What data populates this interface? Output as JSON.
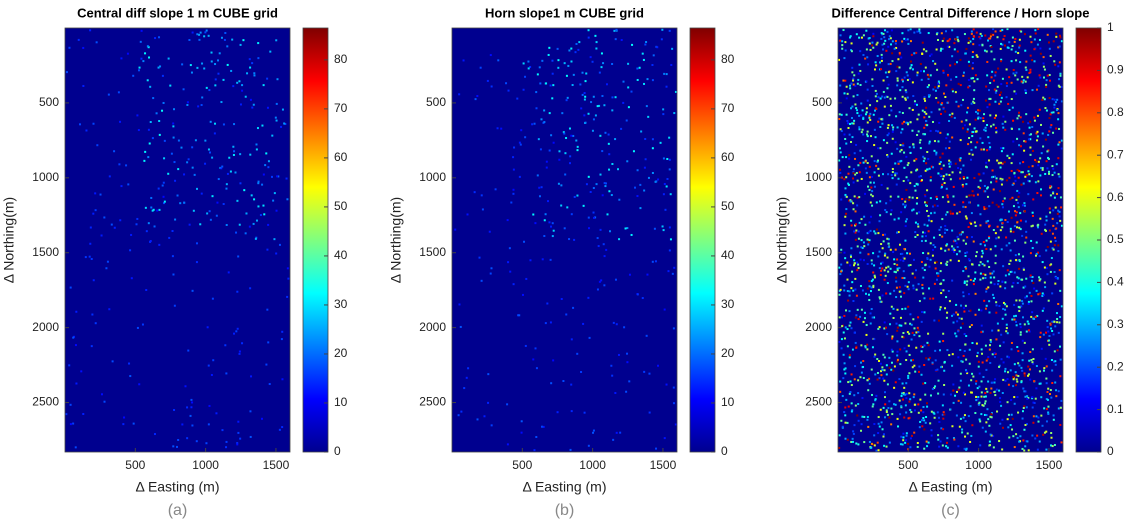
{
  "chart_data": [
    {
      "type": "heatmap",
      "title": "Central diff slope 1 m CUBE grid",
      "xlabel": "Δ Easting (m)",
      "ylabel": "Δ Northing(m)",
      "caption": "(a)",
      "xlim": [
        0,
        1600
      ],
      "ylim": [
        0,
        2830
      ],
      "xticks": [
        500,
        1000,
        1500
      ],
      "yticks": [
        500,
        1000,
        1500,
        2000,
        2500
      ],
      "clim": [
        0,
        86.5
      ],
      "cticks": [
        0,
        10,
        20,
        30,
        40,
        50,
        60,
        70,
        80
      ]
    },
    {
      "type": "heatmap",
      "title": "Horn slope1 m CUBE grid",
      "xlabel": "Δ Easting (m)",
      "ylabel": "Δ Northing(m)",
      "caption": "(b)",
      "xlim": [
        0,
        1600
      ],
      "ylim": [
        0,
        2830
      ],
      "xticks": [
        500,
        1000,
        1500
      ],
      "yticks": [
        500,
        1000,
        1500,
        2000,
        2500
      ],
      "clim": [
        0,
        86.5
      ],
      "cticks": [
        0,
        10,
        20,
        30,
        40,
        50,
        60,
        70,
        80
      ]
    },
    {
      "type": "heatmap",
      "title": "Difference Central Difference / Horn slope",
      "xlabel": "Δ Easting (m)",
      "ylabel": "Δ Northing(m)",
      "caption": "(c)",
      "xlim": [
        0,
        1600
      ],
      "ylim": [
        0,
        2830
      ],
      "xticks": [
        500,
        1000,
        1500
      ],
      "yticks": [
        500,
        1000,
        1500,
        2000,
        2500
      ],
      "clim": [
        0,
        1
      ],
      "cticks": [
        0,
        0.1,
        0.2,
        0.3,
        0.4,
        0.5,
        0.6,
        0.7,
        0.8,
        0.9,
        1
      ]
    }
  ]
}
